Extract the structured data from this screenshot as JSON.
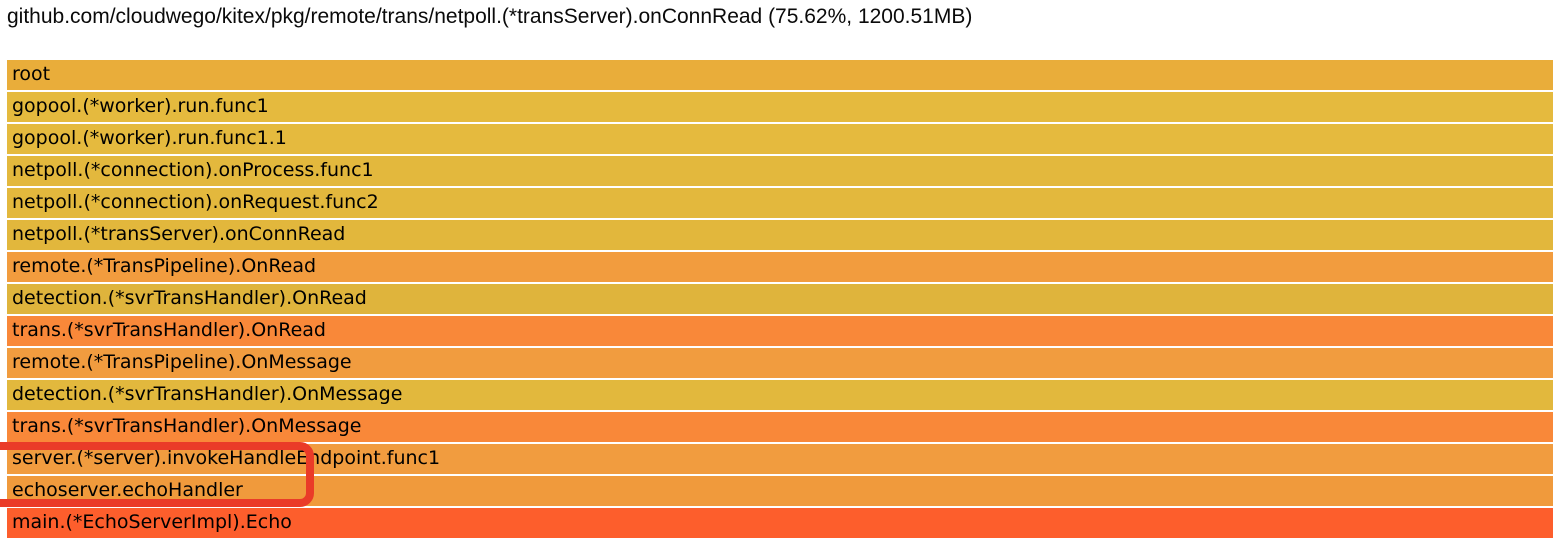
{
  "title": "github.com/cloudwego/kitex/pkg/remote/trans/netpoll.(*transServer).onConnRead (75.62%, 1200.51MB)",
  "chart_data": {
    "type": "flamegraph",
    "title": "github.com/cloudwego/kitex/pkg/remote/trans/netpoll.(*transServer).onConnRead (75.62%, 1200.51MB)",
    "selected_frame": "netpoll.(*transServer).onConnRead",
    "selected_percent": "75.62%",
    "selected_value": "1200.51MB",
    "orientation": "top-down-stack",
    "frames": [
      {
        "label": "root",
        "color": "#e9ad3a"
      },
      {
        "label": "gopool.(*worker).run.func1",
        "color": "#e5ba3e"
      },
      {
        "label": "gopool.(*worker).run.func1.1",
        "color": "#e5ba3e"
      },
      {
        "label": "netpoll.(*connection).onProcess.func1",
        "color": "#e3b83d"
      },
      {
        "label": "netpoll.(*connection).onRequest.func2",
        "color": "#e3b83d"
      },
      {
        "label": "netpoll.(*transServer).onConnRead",
        "color": "#e2b73c"
      },
      {
        "label": "remote.(*TransPipeline).OnRead",
        "color": "#f29c3e"
      },
      {
        "label": "detection.(*svrTransHandler).OnRead",
        "color": "#dfb43c"
      },
      {
        "label": "trans.(*svrTransHandler).OnRead",
        "color": "#f98839"
      },
      {
        "label": "remote.(*TransPipeline).OnMessage",
        "color": "#f19c3f"
      },
      {
        "label": "detection.(*svrTransHandler).OnMessage",
        "color": "#e2b83d"
      },
      {
        "label": "trans.(*svrTransHandler).OnMessage",
        "color": "#f98839"
      },
      {
        "label": "server.(*server).invokeHandleEndpoint.func1",
        "color": "#f19c3f"
      },
      {
        "label": "echoserver.echoHandler",
        "color": "#f09a3c"
      },
      {
        "label": "main.(*EchoServerImpl).Echo",
        "color": "#fd5e2c"
      }
    ],
    "annotation": {
      "shape": "red-rounded-rectangle",
      "color": "#ea3b28",
      "highlights_frames": [
        "server.(*server).invokeHandleEndpoint.func1",
        "echoserver.echoHandler"
      ]
    }
  }
}
